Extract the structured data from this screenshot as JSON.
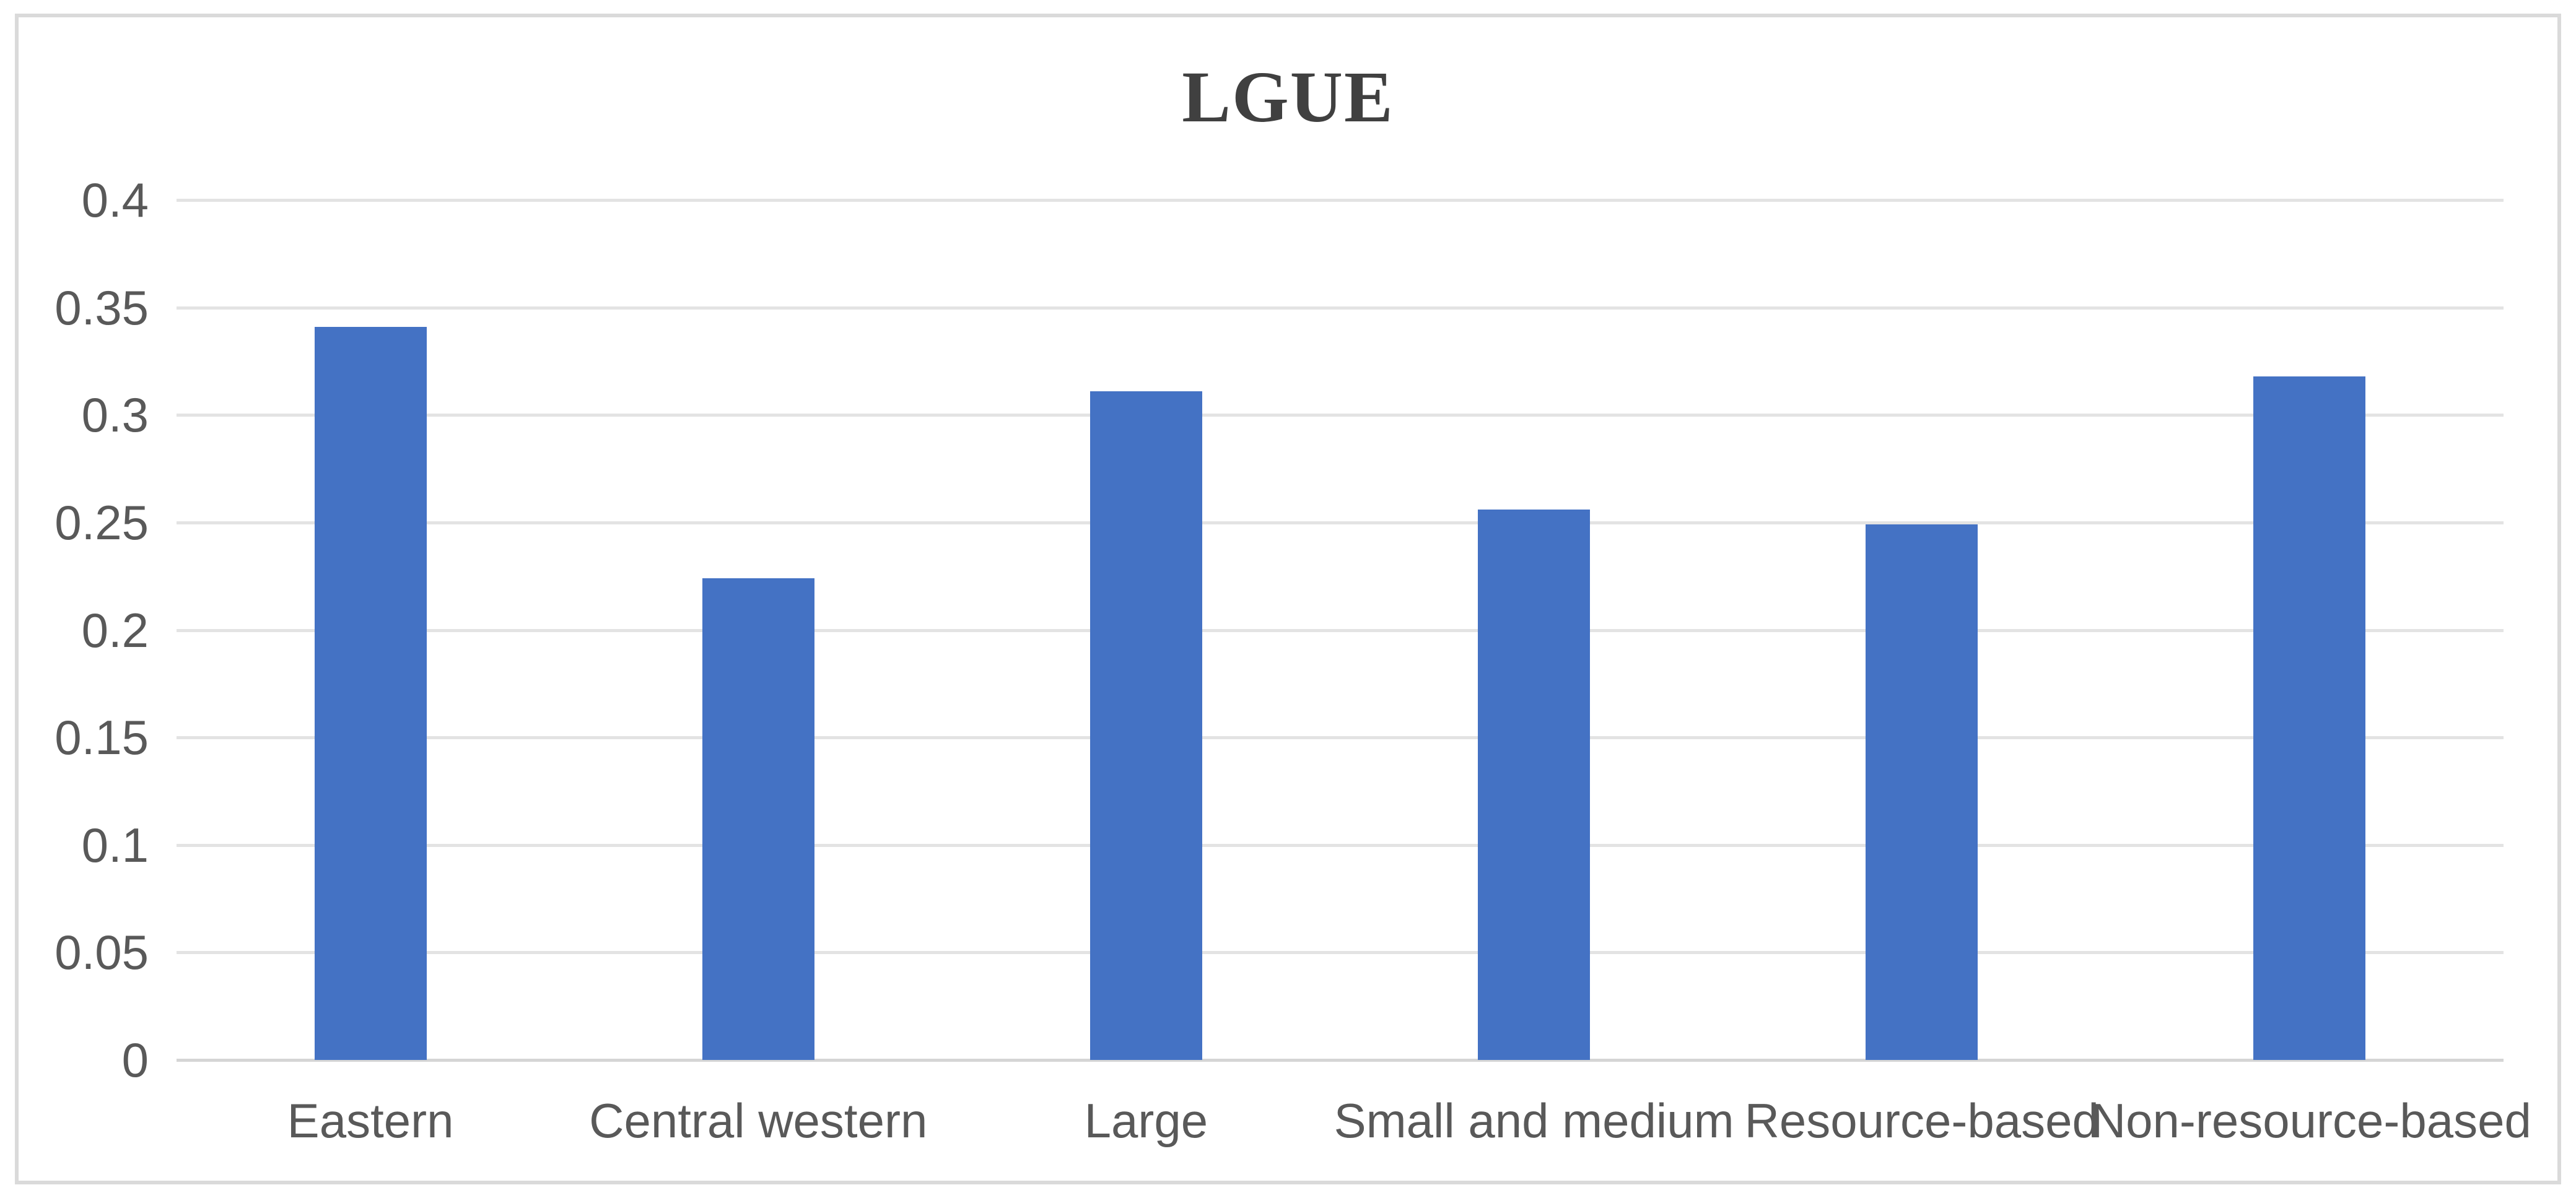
{
  "chart_data": {
    "type": "bar",
    "title": "LGUE",
    "categories": [
      "Eastern",
      "Central western",
      "Large",
      "Small and medium",
      "Resource-based",
      "Non-resource-based"
    ],
    "values": [
      0.341,
      0.224,
      0.311,
      0.256,
      0.249,
      0.318
    ],
    "xlabel": "",
    "ylabel": "",
    "ylim": [
      0,
      0.4
    ],
    "yticks": [
      0,
      0.05,
      0.1,
      0.15,
      0.2,
      0.25,
      0.3,
      0.35,
      0.4
    ],
    "ytick_labels": [
      "0",
      "0.05",
      "0.1",
      "0.15",
      "0.2",
      "0.25",
      "0.3",
      "0.35",
      "0.4"
    ],
    "grid": true,
    "legend": "none",
    "bar_color": "#4472C4"
  },
  "style": {
    "title_color": "#404040",
    "tick_label_color": "#595959",
    "gridline_color": "#E3E3E3",
    "axis_line_color": "#D5D5D5",
    "frame_color": "#DADADA",
    "background_color": "#FFFFFF"
  }
}
